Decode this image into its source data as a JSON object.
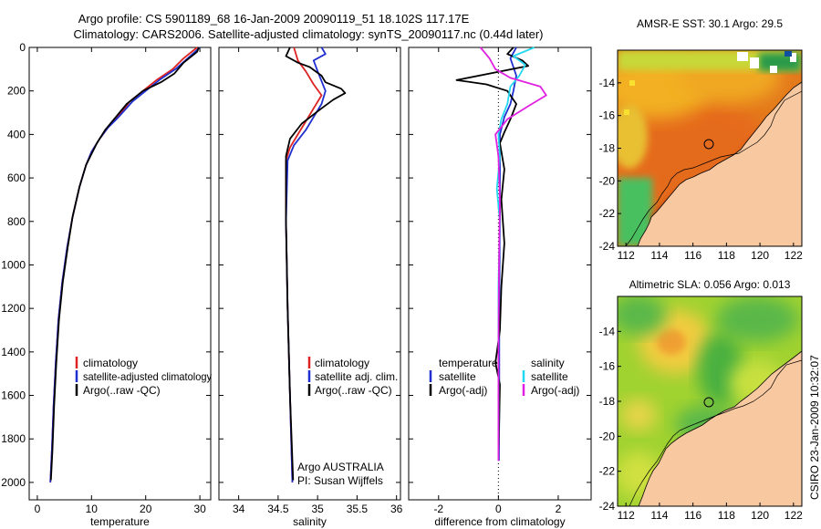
{
  "title": {
    "line1": "Argo profile: CS 5901189_68 16-Jan-2009 20090119_51 18.102S 117.17E",
    "line2": "Climatology: CARS2006. Satellite-adjusted climatology: synTS_20090117.nc (0.44d later)"
  },
  "colors": {
    "climatology": "#dd2222",
    "satellite": "#1f2fd0",
    "argo": "#000000",
    "sal_satellite": "#22d8f0",
    "sal_argo": "#e020e0",
    "land": "#f8c8a0",
    "axis": "#000000"
  },
  "depth_axis": {
    "ticks": [
      "0",
      "200",
      "400",
      "600",
      "800",
      "1000",
      "1200",
      "1400",
      "1600",
      "1800",
      "2000"
    ]
  },
  "chart_data": [
    {
      "type": "line",
      "id": "temperature",
      "xlabel": "temperature",
      "xlim": [
        -1.5,
        32
      ],
      "ylim": [
        2080,
        0
      ],
      "xticks": [
        0,
        10,
        20,
        30
      ],
      "xtick_labels": [
        "0",
        "10",
        "20",
        "30"
      ],
      "series": [
        {
          "name": "climatology",
          "color": "#dd2222",
          "points": [
            [
              29.5,
              0
            ],
            [
              27,
              50
            ],
            [
              25,
              100
            ],
            [
              22,
              150
            ],
            [
              19.5,
              200
            ],
            [
              17,
              250
            ],
            [
              15.5,
              300
            ],
            [
              13,
              370
            ],
            [
              11.5,
              420
            ],
            [
              10,
              480
            ],
            [
              9,
              540
            ],
            [
              7.8,
              640
            ],
            [
              6.5,
              780
            ],
            [
              5.5,
              920
            ],
            [
              4.6,
              1080
            ],
            [
              3.9,
              1250
            ],
            [
              3.4,
              1450
            ],
            [
              3,
              1650
            ],
            [
              2.7,
              1850
            ],
            [
              2.4,
              2000
            ]
          ]
        },
        {
          "name": "satellite-adjusted climatology",
          "color": "#1f2fd0",
          "points": [
            [
              30,
              0
            ],
            [
              28,
              45
            ],
            [
              25.5,
              100
            ],
            [
              22.5,
              150
            ],
            [
              20,
              200
            ],
            [
              17.5,
              250
            ],
            [
              15,
              320
            ],
            [
              13,
              370
            ],
            [
              11.5,
              420
            ],
            [
              10,
              480
            ],
            [
              9,
              540
            ],
            [
              7.8,
              640
            ],
            [
              6.5,
              780
            ],
            [
              5.5,
              920
            ],
            [
              4.6,
              1080
            ],
            [
              3.9,
              1250
            ],
            [
              3.4,
              1450
            ],
            [
              3,
              1650
            ],
            [
              2.7,
              1850
            ],
            [
              2.4,
              2000
            ]
          ]
        },
        {
          "name": "Argo(..raw -QC)",
          "color": "#000000",
          "points": [
            [
              29.8,
              0
            ],
            [
              29.5,
              20
            ],
            [
              27,
              70
            ],
            [
              25.3,
              120
            ],
            [
              22.8,
              160
            ],
            [
              19.5,
              200
            ],
            [
              16.5,
              260
            ],
            [
              14.5,
              320
            ],
            [
              12.5,
              380
            ],
            [
              11,
              440
            ],
            [
              10,
              490
            ],
            [
              9,
              540
            ],
            [
              7.8,
              640
            ],
            [
              6.5,
              780
            ],
            [
              5.6,
              920
            ],
            [
              4.7,
              1080
            ],
            [
              4,
              1250
            ],
            [
              3.5,
              1450
            ],
            [
              3.1,
              1650
            ],
            [
              2.8,
              1850
            ],
            [
              2.5,
              1990
            ]
          ]
        }
      ],
      "legend": {
        "entries": [
          "climatology",
          "satellite-adjusted climatology",
          "Argo(..raw -QC)"
        ],
        "colors": [
          "#dd2222",
          "#1f2fd0",
          "#000000"
        ]
      }
    },
    {
      "type": "line",
      "id": "salinity",
      "xlabel": "salinity",
      "xlim": [
        33.75,
        36.05
      ],
      "ylim": [
        2080,
        0
      ],
      "xticks": [
        34,
        34.5,
        35,
        35.5,
        36
      ],
      "xtick_labels": [
        "34",
        "34.5",
        "35",
        "35.5",
        "36"
      ],
      "series": [
        {
          "name": "climatology",
          "color": "#dd2222",
          "points": [
            [
              34.7,
              0
            ],
            [
              34.75,
              60
            ],
            [
              34.85,
              110
            ],
            [
              34.95,
              170
            ],
            [
              35.05,
              220
            ],
            [
              34.95,
              280
            ],
            [
              34.85,
              340
            ],
            [
              34.75,
              400
            ],
            [
              34.65,
              460
            ],
            [
              34.6,
              520
            ],
            [
              34.6,
              800
            ],
            [
              34.62,
              1200
            ],
            [
              34.65,
              1600
            ],
            [
              34.68,
              2000
            ]
          ]
        },
        {
          "name": "satellite adj. clim.",
          "color": "#1f2fd0",
          "points": [
            [
              35.05,
              0
            ],
            [
              35.1,
              30
            ],
            [
              34.95,
              60
            ],
            [
              35,
              110
            ],
            [
              35.1,
              200
            ],
            [
              35.05,
              260
            ],
            [
              34.95,
              320
            ],
            [
              34.85,
              380
            ],
            [
              34.7,
              450
            ],
            [
              34.62,
              520
            ],
            [
              34.6,
              800
            ],
            [
              34.62,
              1200
            ],
            [
              34.65,
              1600
            ],
            [
              34.68,
              2000
            ]
          ]
        },
        {
          "name": "Argo(..raw -QC)",
          "color": "#000000",
          "points": [
            [
              34.65,
              0
            ],
            [
              34.6,
              40
            ],
            [
              34.75,
              70
            ],
            [
              34.9,
              90
            ],
            [
              35.05,
              130
            ],
            [
              35.1,
              160
            ],
            [
              35.3,
              190
            ],
            [
              35.35,
              210
            ],
            [
              35.2,
              240
            ],
            [
              35.05,
              280
            ],
            [
              34.8,
              350
            ],
            [
              34.65,
              420
            ],
            [
              34.6,
              500
            ],
            [
              34.6,
              800
            ],
            [
              34.62,
              1200
            ],
            [
              34.65,
              1600
            ],
            [
              34.69,
              1990
            ]
          ]
        }
      ],
      "legend": {
        "entries": [
          "climatology",
          "satellite adj. clim.",
          "Argo(..raw -QC)"
        ],
        "colors": [
          "#dd2222",
          "#1f2fd0",
          "#000000"
        ]
      },
      "annotation": [
        "Argo AUSTRALIA",
        "PI: Susan Wijffels"
      ]
    },
    {
      "type": "line",
      "id": "difference",
      "xlabel": "difference from climatology",
      "xlim": [
        -3,
        3.1
      ],
      "ylim": [
        2080,
        0
      ],
      "xticks": [
        -2,
        0,
        2
      ],
      "xtick_labels": [
        "-2",
        "0",
        "2"
      ],
      "zero_line": 0,
      "series": [
        {
          "name": "temperature satellite",
          "color": "#1f2fd0",
          "points": [
            [
              0.6,
              0
            ],
            [
              0.4,
              50
            ],
            [
              0.5,
              90
            ],
            [
              0.6,
              130
            ],
            [
              0.5,
              200
            ],
            [
              0.4,
              260
            ],
            [
              0.2,
              320
            ],
            [
              0.05,
              400
            ],
            [
              0.05,
              800
            ],
            [
              0.03,
              1200
            ],
            [
              0.03,
              1600
            ],
            [
              0.02,
              1900
            ]
          ]
        },
        {
          "name": "temperature Argo(-adj)",
          "color": "#000000",
          "points": [
            [
              0.5,
              0
            ],
            [
              0.3,
              30
            ],
            [
              0.8,
              60
            ],
            [
              1,
              85
            ],
            [
              -1.4,
              150
            ],
            [
              -0.4,
              170
            ],
            [
              0.3,
              200
            ],
            [
              0.6,
              260
            ],
            [
              0.4,
              330
            ],
            [
              0.2,
              390
            ],
            [
              0.05,
              440
            ],
            [
              0.2,
              560
            ],
            [
              0.1,
              700
            ],
            [
              0.2,
              900
            ],
            [
              0.1,
              1100
            ],
            [
              0.05,
              1300
            ],
            [
              -0.1,
              1450
            ],
            [
              0.05,
              1550
            ],
            [
              0.0,
              1900
            ]
          ]
        },
        {
          "name": "salinity satellite",
          "color": "#22d8f0",
          "points": [
            [
              1.2,
              0
            ],
            [
              0.5,
              40
            ],
            [
              0.9,
              80
            ],
            [
              0.7,
              130
            ],
            [
              0.4,
              180
            ],
            [
              0.3,
              260
            ],
            [
              0.1,
              330
            ],
            [
              0.0,
              400
            ],
            [
              0.05,
              500
            ],
            [
              -0.05,
              650
            ],
            [
              0.05,
              800
            ],
            [
              0.0,
              1100
            ],
            [
              0.0,
              1500
            ],
            [
              0.0,
              1900
            ]
          ]
        },
        {
          "name": "salinity Argo(-adj)",
          "color": "#e020e0",
          "points": [
            [
              -0.6,
              0
            ],
            [
              -0.3,
              50
            ],
            [
              -0.1,
              100
            ],
            [
              0.4,
              140
            ],
            [
              1.4,
              180
            ],
            [
              1.6,
              220
            ],
            [
              1.0,
              270
            ],
            [
              0.3,
              330
            ],
            [
              -0.1,
              400
            ],
            [
              0.0,
              500
            ],
            [
              0.05,
              700
            ],
            [
              0.02,
              1000
            ],
            [
              0.0,
              1400
            ],
            [
              0.0,
              1900
            ]
          ]
        }
      ],
      "legend": {
        "left_header": "temperature",
        "left_entries": [
          "satellite",
          "Argo(-adj)"
        ],
        "left_colors": [
          "#1f2fd0",
          "#000000"
        ],
        "right_header": "salinity",
        "right_entries": [
          "satellite",
          "Argo(-adj)"
        ],
        "right_colors": [
          "#22d8f0",
          "#e020e0"
        ]
      }
    },
    {
      "type": "heatmap",
      "id": "sst-map",
      "title": "AMSR-E SST: 30.1 Argo: 29.5",
      "xlim": [
        111.5,
        122.5
      ],
      "ylim": [
        -24,
        -12
      ],
      "xticks": [
        112,
        114,
        116,
        118,
        120,
        122
      ],
      "yticks": [
        -24,
        -22,
        -20,
        -18,
        -16,
        -14
      ],
      "profile_location": [
        117.17,
        -18.1
      ]
    },
    {
      "type": "heatmap",
      "id": "sla-map",
      "title": "Altimetric SLA: 0.056 Argo: 0.013",
      "xlim": [
        111.5,
        122.5
      ],
      "ylim": [
        -24,
        -12
      ],
      "xticks": [
        112,
        114,
        116,
        118,
        120,
        122
      ],
      "yticks": [
        -24,
        -22,
        -20,
        -18,
        -16,
        -14
      ],
      "profile_location": [
        117.17,
        -18.1
      ]
    }
  ],
  "footer_stamp": "CSIRO 23-Jan-2009 10:32:07"
}
